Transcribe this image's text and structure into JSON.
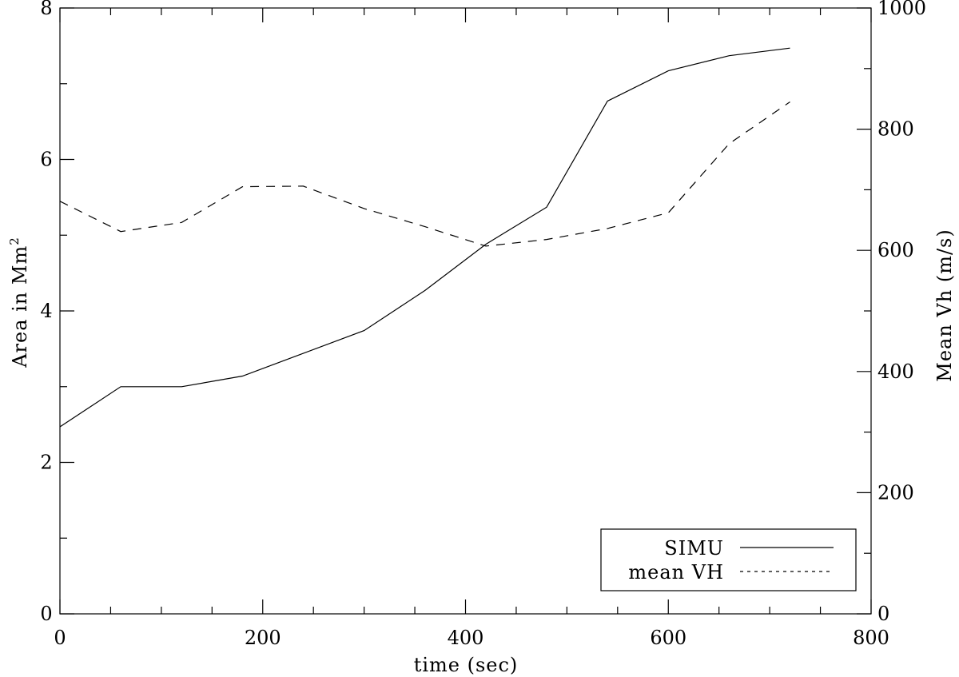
{
  "chart_data": {
    "type": "line",
    "xlabel": "time (sec)",
    "ylabel_left": "Area in Mm",
    "ylabel_left_superscript": "2",
    "ylabel_right": "Mean Vh (m/s)",
    "xlim": [
      0,
      800
    ],
    "ylim_left": [
      0,
      8
    ],
    "ylim_right": [
      0,
      1000
    ],
    "x_ticks": [
      0,
      200,
      400,
      600,
      800
    ],
    "y_left_ticks": [
      0,
      2,
      4,
      6,
      8
    ],
    "y_right_ticks": [
      0,
      200,
      400,
      600,
      800,
      1000
    ],
    "grid": false,
    "legend_placement": "bottom-right",
    "series": [
      {
        "name": "SIMU",
        "axis": "left",
        "style": "solid",
        "x": [
          0,
          60,
          120,
          180,
          240,
          300,
          360,
          420,
          480,
          540,
          600,
          660,
          720
        ],
        "values": [
          2.47,
          3.0,
          3.0,
          3.14,
          3.44,
          3.74,
          4.27,
          4.88,
          5.37,
          6.77,
          7.17,
          7.37,
          7.47
        ]
      },
      {
        "name": "mean VH",
        "axis": "right",
        "style": "dashed",
        "x": [
          0,
          60,
          120,
          180,
          240,
          300,
          360,
          420,
          480,
          540,
          600,
          660,
          720
        ],
        "values": [
          681,
          631,
          646,
          705,
          706,
          669,
          639,
          607,
          618,
          636,
          662,
          776,
          845
        ]
      }
    ]
  }
}
